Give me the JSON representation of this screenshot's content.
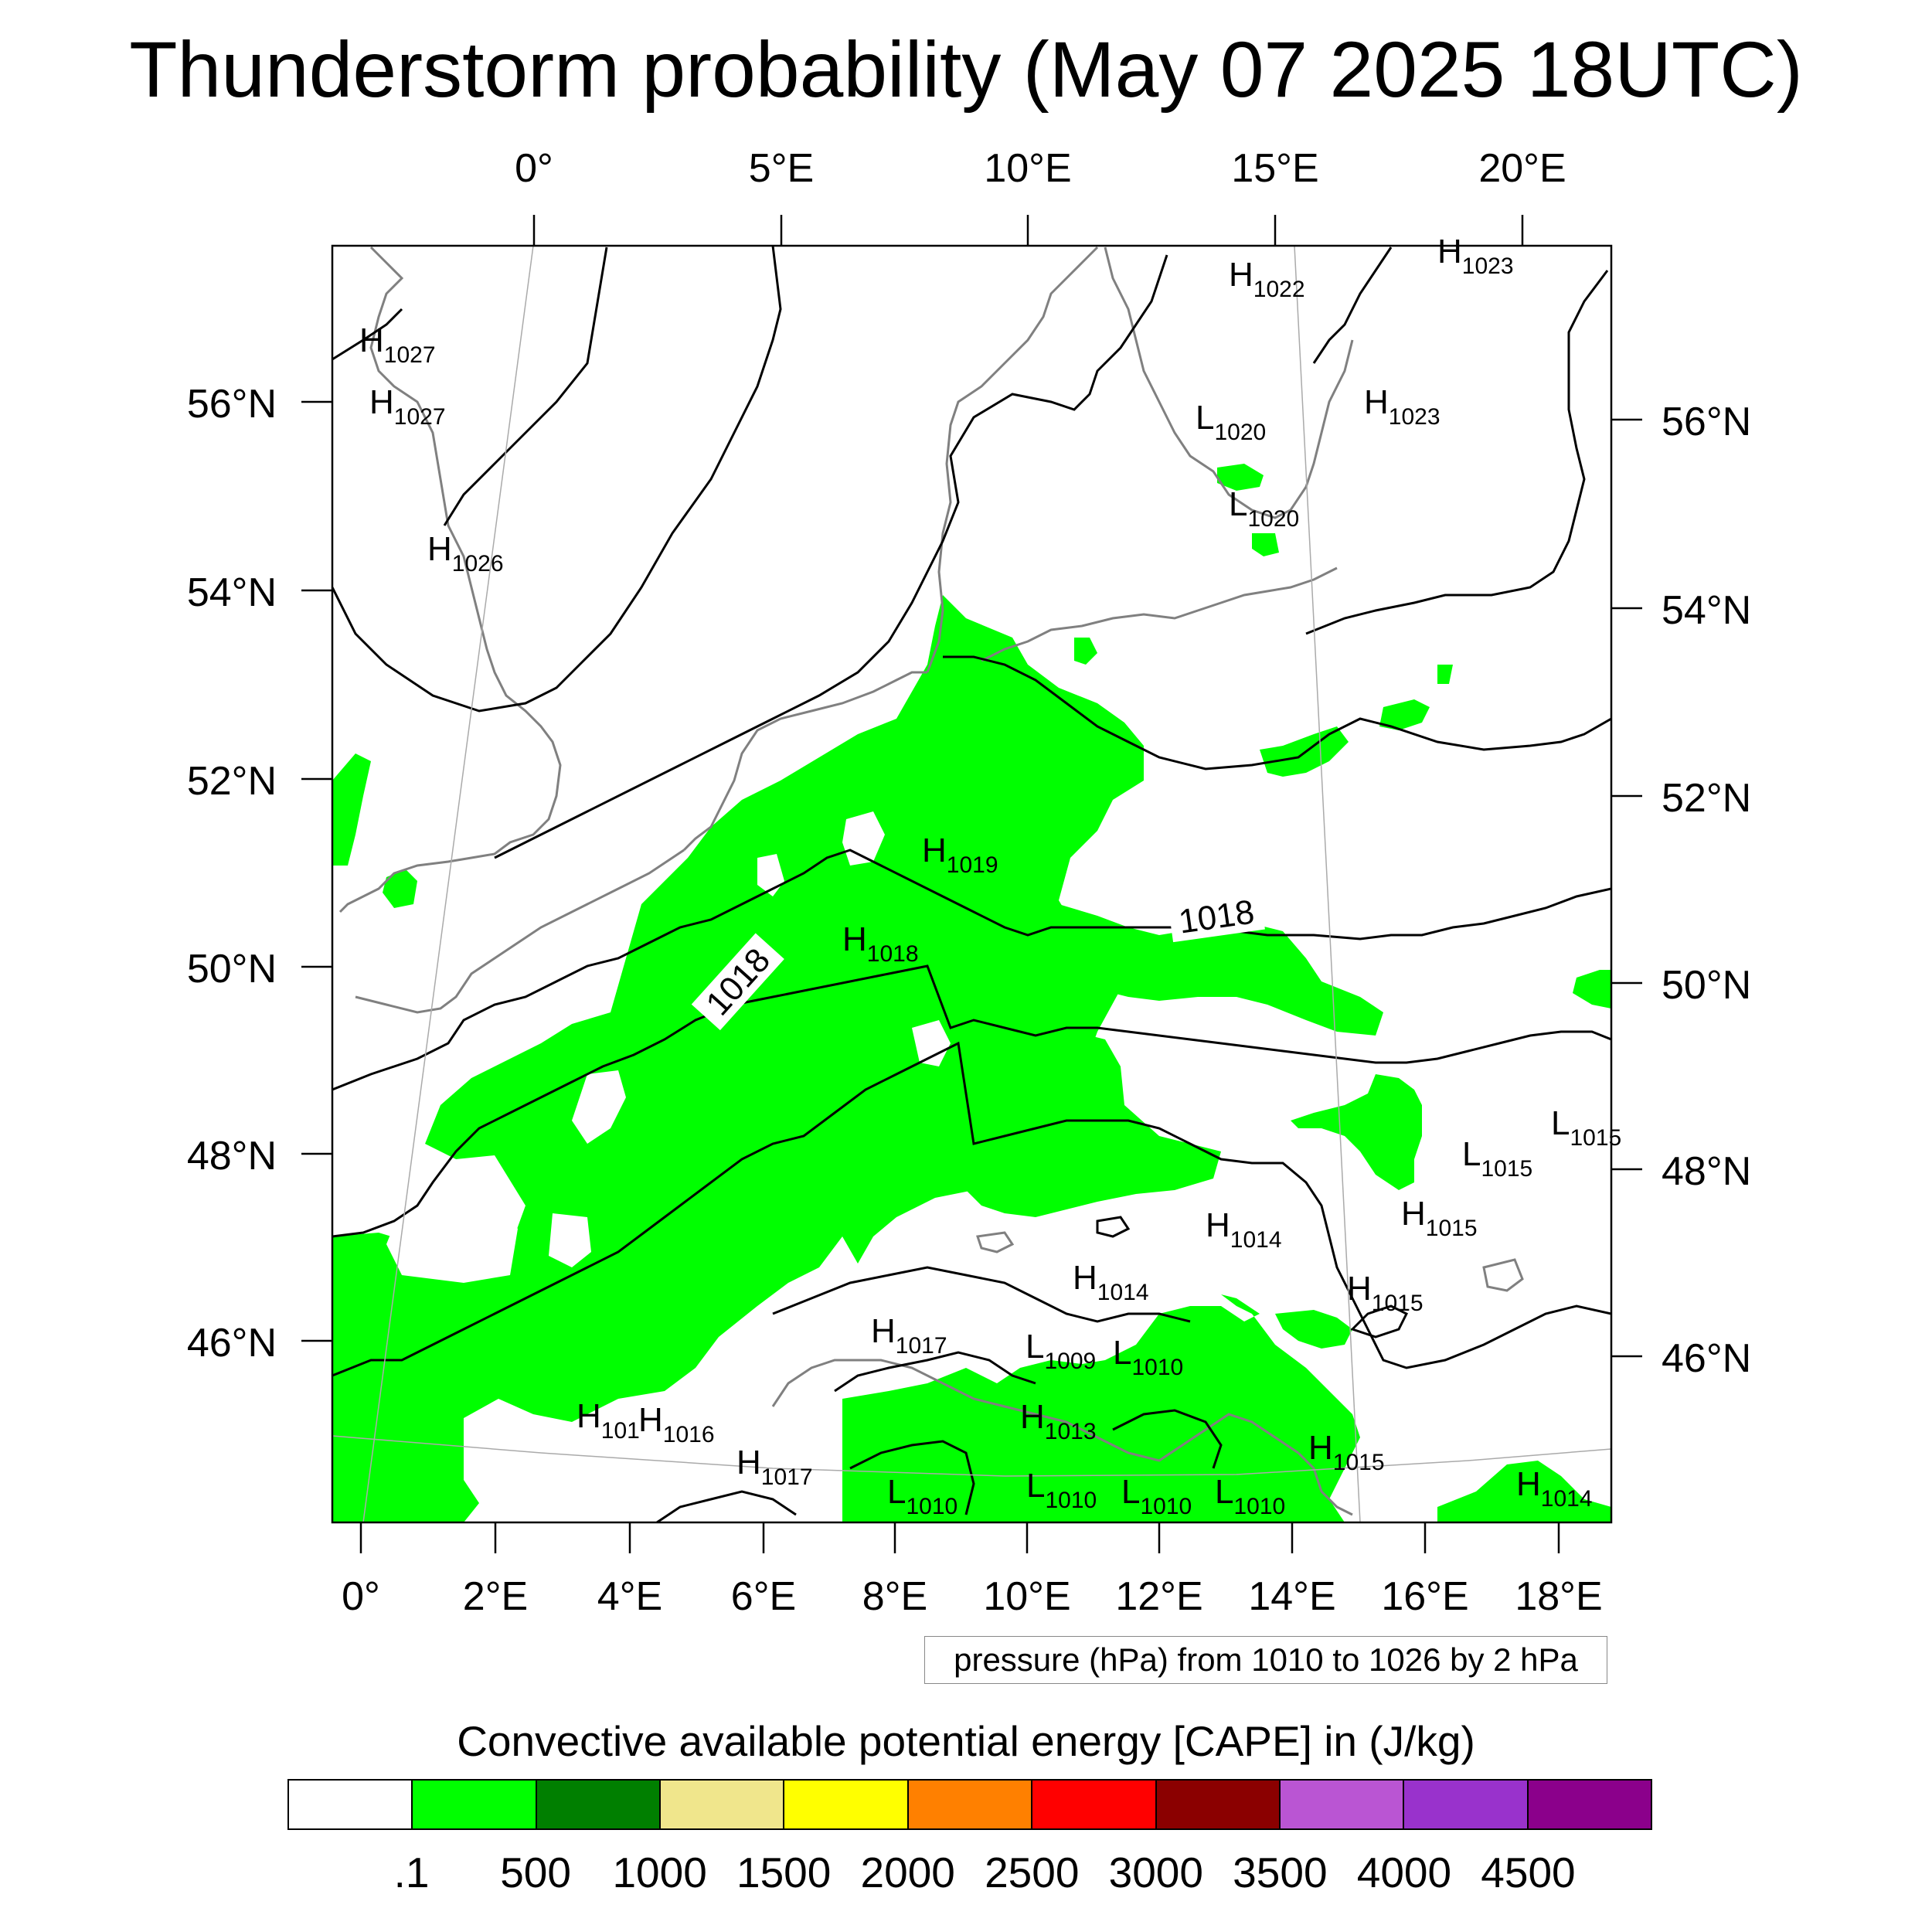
{
  "title": "Thunderstorm probability (May 07 2025 18UTC)",
  "top_lon_labels": [
    "0°",
    "5°E",
    "10°E",
    "15°E",
    "20°E"
  ],
  "bottom_lon_labels": [
    "0°",
    "2°E",
    "4°E",
    "6°E",
    "8°E",
    "10°E",
    "12°E",
    "14°E",
    "16°E",
    "18°E"
  ],
  "left_lat_labels": [
    "56°N",
    "54°N",
    "52°N",
    "50°N",
    "48°N",
    "46°N"
  ],
  "right_lat_labels": [
    "56°N",
    "54°N",
    "52°N",
    "50°N",
    "48°N",
    "46°N"
  ],
  "pressure_centers": [
    {
      "type": "H",
      "value": "1027"
    },
    {
      "type": "H",
      "value": "1027"
    },
    {
      "type": "H",
      "value": "1026"
    },
    {
      "type": "H",
      "value": "1022"
    },
    {
      "type": "H",
      "value": "1023"
    },
    {
      "type": "H",
      "value": "1023"
    },
    {
      "type": "L",
      "value": "1020"
    },
    {
      "type": "L",
      "value": "1020"
    },
    {
      "type": "H",
      "value": "1019"
    },
    {
      "type": "H",
      "value": "1018"
    },
    {
      "type": "L",
      "value": "1015"
    },
    {
      "type": "L",
      "value": "1015"
    },
    {
      "type": "H",
      "value": "1015"
    },
    {
      "type": "H",
      "value": "1015"
    },
    {
      "type": "H",
      "value": "1014"
    },
    {
      "type": "H",
      "value": "1014"
    },
    {
      "type": "H",
      "value": "1017"
    },
    {
      "type": "L",
      "value": "1009"
    },
    {
      "type": "L",
      "value": "1010"
    },
    {
      "type": "H",
      "value": "101"
    },
    {
      "type": "H",
      "value": "1016"
    },
    {
      "type": "H",
      "value": "1013"
    },
    {
      "type": "H",
      "value": "1017"
    },
    {
      "type": "L",
      "value": "1010"
    },
    {
      "type": "L",
      "value": "1010"
    },
    {
      "type": "L",
      "value": "1010"
    },
    {
      "type": "L",
      "value": "1010"
    },
    {
      "type": "H",
      "value": "1015"
    },
    {
      "type": "H",
      "value": "1014"
    }
  ],
  "isobar_labels": [
    "1018",
    "1018"
  ],
  "pressure_note": "pressure (hPa) from 1010 to 1026 by 2 hPa",
  "cape_title": "Convective available potential energy [CAPE] in (J/kg)",
  "colorbar": {
    "colors": [
      "#ffffff",
      "#00ff00",
      "#007f00",
      "#f0e68c",
      "#ffff00",
      "#ff8000",
      "#ff0000",
      "#8b0000",
      "#ba55d3",
      "#9932cc",
      "#8b008b"
    ],
    "labels": [
      ".1",
      "500",
      "1000",
      "1500",
      "2000",
      "2500",
      "3000",
      "3500",
      "4000",
      "4500"
    ]
  },
  "colors": {
    "cape_green": "#00ff00",
    "coastline": "#808080",
    "isobar": "#000000"
  }
}
